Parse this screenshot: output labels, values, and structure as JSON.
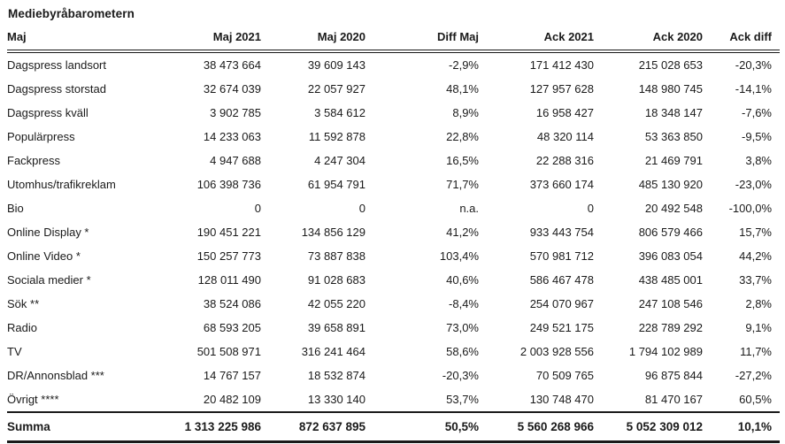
{
  "title": "Mediebyråbarometern",
  "table": {
    "columns": [
      "Maj",
      "Maj 2021",
      "Maj 2020",
      "Diff Maj",
      "Ack 2021",
      "Ack 2020",
      "Ack diff"
    ],
    "rows": [
      [
        "Dagspress landsort",
        "38 473 664",
        "39 609 143",
        "-2,9%",
        "171 412 430",
        "215 028 653",
        "-20,3%"
      ],
      [
        "Dagspress storstad",
        "32 674 039",
        "22 057 927",
        "48,1%",
        "127 957 628",
        "148 980 745",
        "-14,1%"
      ],
      [
        "Dagspress kväll",
        "3 902 785",
        "3 584 612",
        "8,9%",
        "16 958 427",
        "18 348 147",
        "-7,6%"
      ],
      [
        "Populärpress",
        "14 233 063",
        "11 592 878",
        "22,8%",
        "48 320 114",
        "53 363 850",
        "-9,5%"
      ],
      [
        "Fackpress",
        "4 947 688",
        "4 247 304",
        "16,5%",
        "22 288 316",
        "21 469 791",
        "3,8%"
      ],
      [
        "Utomhus/trafikreklam",
        "106 398 736",
        "61 954 791",
        "71,7%",
        "373 660 174",
        "485 130 920",
        "-23,0%"
      ],
      [
        "Bio",
        "0",
        "0",
        "n.a.",
        "0",
        "20 492 548",
        "-100,0%"
      ],
      [
        "Online Display *",
        "190 451 221",
        "134 856 129",
        "41,2%",
        "933 443 754",
        "806 579 466",
        "15,7%"
      ],
      [
        "Online Video *",
        "150 257 773",
        "73 887 838",
        "103,4%",
        "570 981 712",
        "396 083 054",
        "44,2%"
      ],
      [
        "Sociala medier *",
        "128 011 490",
        "91 028 683",
        "40,6%",
        "586 467 478",
        "438 485 001",
        "33,7%"
      ],
      [
        "Sök **",
        "38 524 086",
        "42 055 220",
        "-8,4%",
        "254 070 967",
        "247 108 546",
        "2,8%"
      ],
      [
        "Radio",
        "68 593 205",
        "39 658 891",
        "73,0%",
        "249 521 175",
        "228 789 292",
        "9,1%"
      ],
      [
        "TV",
        "501 508 971",
        "316 241 464",
        "58,6%",
        "2 003 928 556",
        "1 794 102 989",
        "11,7%"
      ],
      [
        "DR/Annonsblad ***",
        "14 767 157",
        "18 532 874",
        "-20,3%",
        "70 509 765",
        "96 875 844",
        "-27,2%"
      ],
      [
        "Övrigt ****",
        "20 482 109",
        "13 330 140",
        "53,7%",
        "130 748 470",
        "81 470 167",
        "60,5%"
      ]
    ],
    "summary": [
      "Summa",
      "1 313 225 986",
      "872 637 895",
      "50,5%",
      "5 560 268 966",
      "5 052 309 012",
      "10,1%"
    ]
  }
}
